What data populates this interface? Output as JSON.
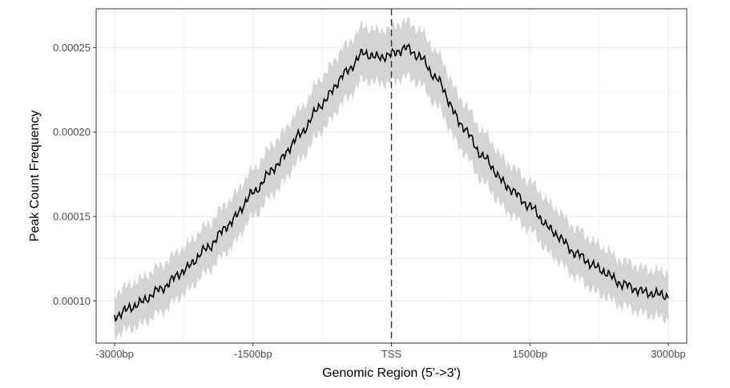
{
  "chart_data": {
    "type": "line",
    "xlabel": "Genomic Region (5'->3')",
    "ylabel": "Peak Count Frequency",
    "xlim": [
      -3200,
      3200
    ],
    "ylim": [
      7.5e-05,
      0.000273
    ],
    "x_ticks": [
      {
        "value": -3000,
        "label": "-3000bp"
      },
      {
        "value": -1500,
        "label": "-1500bp"
      },
      {
        "value": 0,
        "label": "TSS"
      },
      {
        "value": 1500,
        "label": "1500bp"
      },
      {
        "value": 3000,
        "label": "3000bp"
      }
    ],
    "y_ticks": [
      {
        "value": 0.0001,
        "label": "0.00010"
      },
      {
        "value": 0.00015,
        "label": "0.00015"
      },
      {
        "value": 0.0002,
        "label": "0.00020"
      },
      {
        "value": 0.00025,
        "label": "0.00025"
      }
    ],
    "grid": true,
    "vline": {
      "x": 0,
      "style": "dashed"
    },
    "series": [
      {
        "x": [
          -3000,
          -2750,
          -2500,
          -2250,
          -2000,
          -1750,
          -1500,
          -1250,
          -1000,
          -750,
          -500,
          -300,
          -150,
          0,
          150,
          300,
          500,
          750,
          1000,
          1250,
          1500,
          1750,
          2000,
          2250,
          2500,
          2750,
          3000
        ],
        "y": [
          9.1e-05,
          9.8e-05,
          0.000107,
          0.000118,
          0.000131,
          0.000146,
          0.000164,
          0.00018,
          0.000198,
          0.000217,
          0.000235,
          0.000247,
          0.000244,
          0.000246,
          0.00025,
          0.000245,
          0.000231,
          0.000205,
          0.000185,
          0.000168,
          0.000156,
          0.000141,
          0.000128,
          0.000119,
          0.00011,
          0.000105,
          0.000103
        ],
        "upper": [
          0.000105,
          0.000112,
          0.000121,
          0.000132,
          0.000145,
          0.00016,
          0.000178,
          0.000195,
          0.000213,
          0.000233,
          0.000251,
          0.000263,
          0.00026,
          0.000262,
          0.000266,
          0.000261,
          0.000247,
          0.00022,
          0.0002,
          0.000182,
          0.000171,
          0.000156,
          0.000143,
          0.000133,
          0.000124,
          0.000119,
          0.000117
        ],
        "lower": [
          8e-05,
          8.5e-05,
          9.3e-05,
          0.000104,
          0.000117,
          0.000131,
          0.00015,
          0.000165,
          0.000183,
          0.000201,
          0.000219,
          0.000231,
          0.000229,
          0.000229,
          0.000233,
          0.000229,
          0.000215,
          0.00019,
          0.00017,
          0.000153,
          0.000142,
          0.000126,
          0.000114,
          0.000104,
          9.7e-05,
          9.2e-05,
          8.9e-05
        ]
      }
    ],
    "colors": {
      "line": "#000000",
      "ribbon": "#d4d4d4",
      "grid": "#ebebeb",
      "panel_border": "#333333"
    }
  }
}
